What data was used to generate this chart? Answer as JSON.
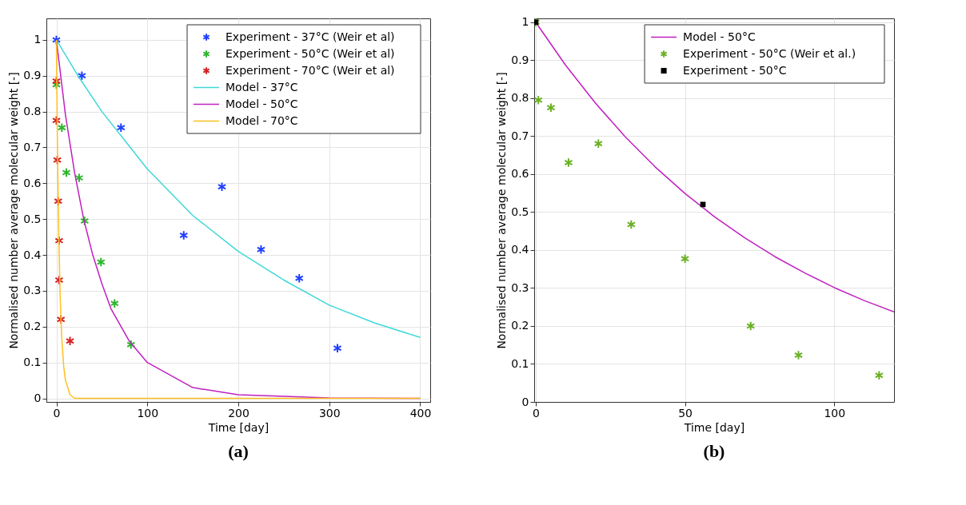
{
  "chart_data": [
    {
      "type": "scatter",
      "xlabel": "Time [day]",
      "ylabel": "Normalised number average molecular weight [-]",
      "xlim": [
        -11,
        411
      ],
      "ylim": [
        -0.01,
        1.06
      ],
      "xticks": [
        0,
        100,
        200,
        300,
        400
      ],
      "yticks": [
        0,
        0.1,
        0.2,
        0.3,
        0.4,
        0.5,
        0.6,
        0.7,
        0.8,
        0.9,
        1
      ],
      "grid": true,
      "legend": "top right",
      "annotations": [
        "(a)"
      ],
      "series": [
        {
          "name": "Experiment - 37°C (Weir et al)",
          "color": "#1f3fff",
          "marker": "cross",
          "x": [
            0,
            28,
            71,
            140,
            182,
            225,
            267,
            309
          ],
          "values": [
            1,
            0.9,
            0.755,
            0.455,
            0.59,
            0.415,
            0.335,
            0.14
          ]
        },
        {
          "name": "Experiment - 50°C (Weir et al)",
          "color": "#2db52d",
          "marker": "cross",
          "x": [
            0,
            6,
            11,
            25,
            31,
            49,
            64,
            82
          ],
          "values": [
            0.875,
            0.755,
            0.63,
            0.615,
            0.495,
            0.38,
            0.265,
            0.15
          ]
        },
        {
          "name": "Experiment - 70°C (Weir et al)",
          "color": "#d42020",
          "marker": "cross",
          "x": [
            0,
            0,
            1,
            2,
            3,
            3,
            5,
            15
          ],
          "values": [
            0.885,
            0.775,
            0.665,
            0.55,
            0.44,
            0.33,
            0.22,
            0.16
          ]
        },
        {
          "name": "Model - 37°C",
          "type": "line",
          "color": "#40d8d8",
          "x": [
            0,
            25,
            50,
            75,
            100,
            150,
            200,
            250,
            300,
            350,
            400
          ],
          "values": [
            1,
            0.895,
            0.8,
            0.72,
            0.64,
            0.51,
            0.41,
            0.33,
            0.26,
            0.21,
            0.17
          ]
        },
        {
          "name": "Model - 50°C",
          "type": "line",
          "color": "#c020c0",
          "x": [
            0,
            10,
            20,
            30,
            40,
            50,
            60,
            80,
            100,
            150,
            200,
            300,
            400
          ],
          "values": [
            1,
            0.79,
            0.63,
            0.5,
            0.4,
            0.32,
            0.25,
            0.16,
            0.1,
            0.03,
            0.01,
            0.001,
            0
          ]
        },
        {
          "name": "Model - 70°C",
          "type": "line",
          "color": "#ffc020",
          "x": [
            0,
            1,
            2,
            3,
            4,
            5,
            6,
            8,
            10,
            15,
            20,
            30,
            400
          ],
          "values": [
            1,
            0.74,
            0.55,
            0.41,
            0.3,
            0.22,
            0.165,
            0.09,
            0.05,
            0.01,
            0,
            0,
            0
          ]
        }
      ]
    },
    {
      "type": "scatter",
      "xlabel": "Time [day]",
      "ylabel": "Normalised number average molecular weight [-]",
      "xlim": [
        -0.5,
        120
      ],
      "ylim": [
        0,
        1.01
      ],
      "xticks": [
        0,
        50,
        100
      ],
      "yticks": [
        0,
        0.1,
        0.2,
        0.3,
        0.4,
        0.5,
        0.6,
        0.7,
        0.8,
        0.9,
        1
      ],
      "grid": true,
      "legend": "top right",
      "annotations": [
        "(b)"
      ],
      "series": [
        {
          "name": "Model - 50°C",
          "type": "line",
          "color": "#c020c0",
          "x": [
            0,
            10,
            20,
            30,
            40,
            50,
            60,
            70,
            80,
            90,
            100,
            110,
            120
          ],
          "values": [
            1,
            0.887,
            0.787,
            0.698,
            0.619,
            0.549,
            0.487,
            0.432,
            0.383,
            0.34,
            0.301,
            0.267,
            0.237
          ]
        },
        {
          "name": "Experiment - 50°C (Weir et al.)",
          "color": "#6ab023",
          "marker": "cross",
          "x": [
            0,
            0.9,
            5.1,
            11,
            21,
            32,
            50,
            72,
            88,
            115
          ],
          "values": [
            1,
            0.795,
            0.775,
            0.63,
            0.68,
            0.467,
            0.377,
            0.2,
            0.123,
            0.07
          ]
        },
        {
          "name": "Experiment - 50°C",
          "color": "#000000",
          "marker": "square",
          "x": [
            0,
            56
          ],
          "values": [
            1,
            0.52
          ]
        }
      ]
    }
  ]
}
